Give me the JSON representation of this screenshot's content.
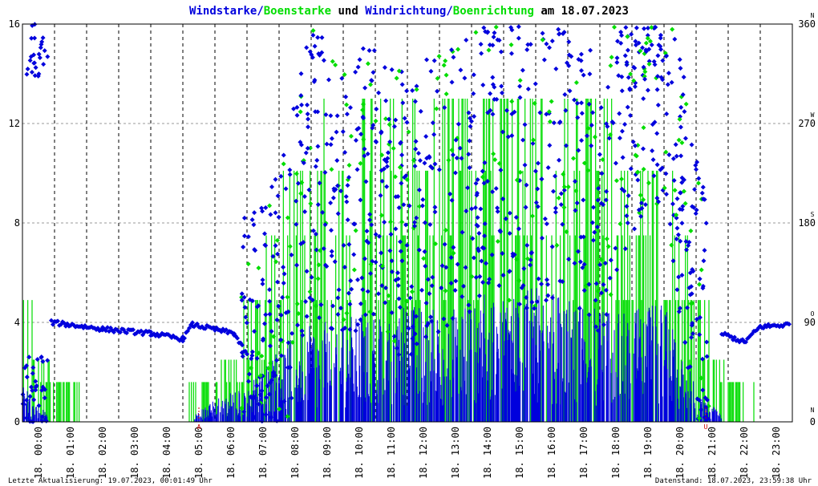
{
  "title": {
    "part1": "Windstarke/",
    "part2": "Boenstarke",
    "part3": " und ",
    "part4": "Windrichtung/",
    "part5": "Boenrichtung",
    "part6": " am 18.07.2023"
  },
  "colors": {
    "blue": "#0000dd",
    "green": "#00dd00",
    "red": "#cc0000",
    "grid": "#000000",
    "border": "#000000"
  },
  "footer": {
    "left": "Letzte Aktualisierung: 19.07.2023, 00:01:49 Uhr",
    "right": "Datenstand: 18.07.2023, 23:59:38 Uhr"
  },
  "markers": {
    "sunrise": "A",
    "sunset": "U"
  },
  "chart_data": {
    "type": "line",
    "x_ticks": [
      "18. 00:00",
      "18. 01:00",
      "18. 02:00",
      "18. 03:00",
      "18. 04:00",
      "18. 05:00",
      "18. 06:00",
      "18. 07:00",
      "18. 08:00",
      "18. 09:00",
      "18. 10:00",
      "18. 11:00",
      "18. 12:00",
      "18. 13:00",
      "18. 14:00",
      "18. 15:00",
      "18. 16:00",
      "18. 17:00",
      "18. 18:00",
      "18. 19:00",
      "18. 20:00",
      "18. 21:00",
      "18. 22:00",
      "18. 23:00"
    ],
    "y_left": {
      "ticks": [
        "0",
        "4",
        "8",
        "12",
        "16"
      ],
      "ylim": [
        0,
        16
      ]
    },
    "y_right": {
      "ticks": [
        "0",
        "90",
        "180",
        "270",
        "360"
      ],
      "ylim": [
        0,
        360
      ],
      "dir_labels": [
        "N",
        "O",
        "S",
        "W",
        "N"
      ]
    },
    "sunrise_hour": 5.5,
    "sunset_hour": 21.3,
    "series": [
      {
        "name": "Windstarke",
        "color": "#0000dd",
        "axis": "left",
        "type": "bar"
      },
      {
        "name": "Boenstarke",
        "color": "#00dd00",
        "axis": "left",
        "type": "bar"
      },
      {
        "name": "Windrichtung",
        "color": "#0000dd",
        "axis": "right",
        "type": "scatter"
      },
      {
        "name": "Boenrichtung",
        "color": "#00dd00",
        "axis": "right",
        "type": "scatter"
      }
    ],
    "windstaerke_hourly": [
      [
        0.0,
        1.0
      ],
      [
        1.0,
        0.0
      ],
      [
        2.0,
        0.0
      ],
      [
        3.0,
        0.0
      ],
      [
        4.0,
        0.0
      ],
      [
        5.0,
        0.0
      ],
      [
        6.0,
        0.6
      ],
      [
        7.0,
        1.0
      ],
      [
        8.0,
        2.0
      ],
      [
        9.0,
        2.6
      ],
      [
        10.0,
        2.8
      ],
      [
        11.0,
        3.0
      ],
      [
        12.0,
        3.2
      ],
      [
        13.0,
        3.0
      ],
      [
        14.0,
        3.4
      ],
      [
        15.0,
        3.6
      ],
      [
        16.0,
        3.6
      ],
      [
        17.0,
        3.4
      ],
      [
        18.0,
        3.0
      ],
      [
        19.0,
        3.0
      ],
      [
        20.0,
        3.2
      ],
      [
        21.0,
        1.0
      ],
      [
        22.0,
        0.0
      ],
      [
        23.0,
        0.0
      ]
    ],
    "boenstaerke_hourly": [
      [
        0.0,
        4.9
      ],
      [
        1.0,
        1.6
      ],
      [
        2.0,
        0.0
      ],
      [
        3.0,
        0.0
      ],
      [
        4.0,
        0.0
      ],
      [
        5.0,
        0.0
      ],
      [
        6.0,
        2.0
      ],
      [
        7.0,
        4.0
      ],
      [
        8.0,
        7.5
      ],
      [
        9.0,
        10.0
      ],
      [
        10.0,
        11.0
      ],
      [
        11.0,
        12.5
      ],
      [
        12.0,
        11.0
      ],
      [
        13.0,
        10.5
      ],
      [
        14.0,
        12.0
      ],
      [
        15.0,
        13.0
      ],
      [
        16.0,
        12.5
      ],
      [
        17.0,
        12.0
      ],
      [
        18.0,
        10.5
      ],
      [
        19.0,
        9.0
      ],
      [
        20.0,
        10.0
      ],
      [
        21.0,
        4.9
      ],
      [
        22.0,
        1.6
      ],
      [
        23.0,
        0.0
      ]
    ],
    "windrichtung_hourly": [
      [
        0.0,
        330
      ],
      [
        0.5,
        40
      ],
      [
        1.0,
        88
      ],
      [
        2.0,
        84
      ],
      [
        3.0,
        84
      ],
      [
        4.0,
        78
      ],
      [
        5.0,
        76
      ],
      [
        6.0,
        78
      ],
      [
        7.0,
        70
      ],
      [
        8.0,
        100
      ],
      [
        9.0,
        230
      ],
      [
        10.0,
        200
      ],
      [
        11.0,
        220
      ],
      [
        12.0,
        180
      ],
      [
        13.0,
        210
      ],
      [
        14.0,
        230
      ],
      [
        15.0,
        240
      ],
      [
        16.0,
        230
      ],
      [
        17.0,
        250
      ],
      [
        18.0,
        200
      ],
      [
        19.0,
        300
      ],
      [
        20.0,
        330
      ],
      [
        21.0,
        110
      ],
      [
        22.0,
        75
      ],
      [
        23.0,
        84
      ]
    ]
  }
}
